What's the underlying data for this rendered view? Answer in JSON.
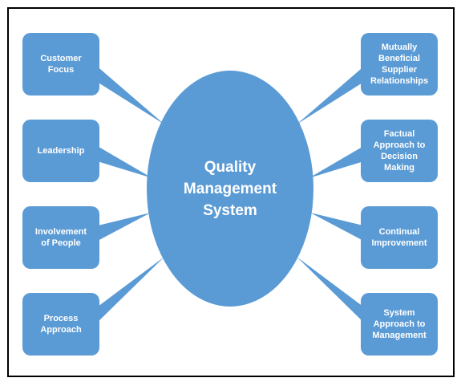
{
  "center": {
    "label": "Quality\nManagement\nSystem"
  },
  "left_nodes": [
    {
      "label": "Customer\nFocus"
    },
    {
      "label": "Leadership"
    },
    {
      "label": "Involvement\nof People"
    },
    {
      "label": "Process\nApproach"
    }
  ],
  "right_nodes": [
    {
      "label": "Mutually\nBeneficial\nSupplier\nRelationships"
    },
    {
      "label": "Factual\nApproach to\nDecision\nMaking"
    },
    {
      "label": "Continual\nImprovement"
    },
    {
      "label": "System\nApproach to\nManagement"
    }
  ],
  "colors": {
    "fill": "#5b9bd5",
    "text": "#ffffff",
    "border": "#000000"
  }
}
